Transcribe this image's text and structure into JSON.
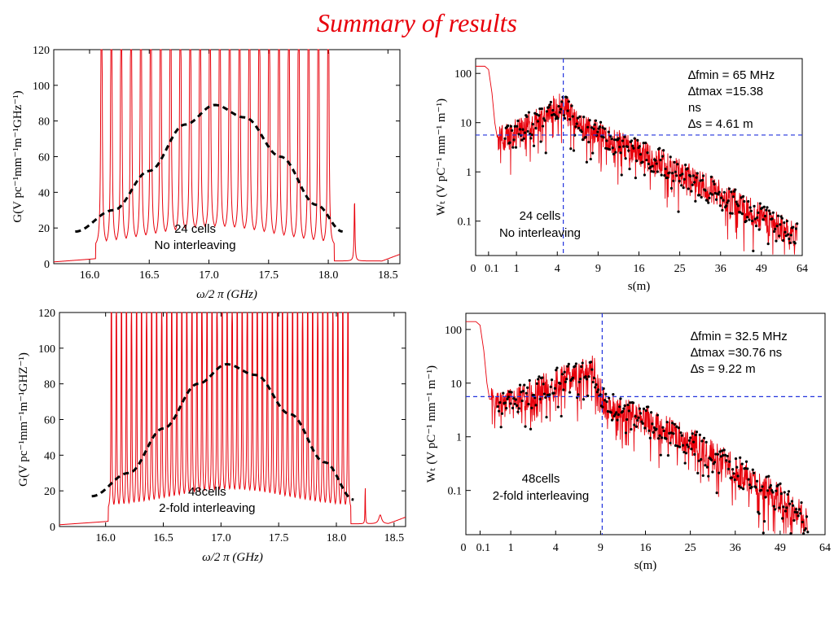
{
  "title": "Summary of results",
  "colors": {
    "curve": "#e8000b",
    "envelope": "#000000",
    "guide": "#2233dd",
    "points": "#000000"
  },
  "chart_data": [
    {
      "type": "line",
      "panel": "top-left",
      "xlabel": "ω/2 π (GHz)",
      "ylabel": "G(V pc⁻¹mm⁻¹m⁻¹GHz⁻¹)",
      "xlim": [
        15.7,
        18.6
      ],
      "ylim": [
        0,
        120
      ],
      "xticks": [
        16.0,
        16.5,
        17.0,
        17.5,
        18.0,
        18.5
      ],
      "xtick_labels": [
        "16.0",
        "16.5",
        "17.0",
        "17.5",
        "18.0",
        "18.5"
      ],
      "yticks": [
        0,
        20,
        40,
        60,
        80,
        100,
        120
      ],
      "annotation": [
        "24 cells",
        "No interleaving"
      ],
      "series": [
        {
          "kind": "peaks",
          "n_peaks": 24,
          "x_start": 16.1,
          "x_end": 18.0,
          "min_level": 8,
          "extra_peak": [
            18.22,
            34
          ],
          "tail": [
            [
              15.7,
              1
            ],
            [
              18.45,
              1
            ],
            [
              18.6,
              4
            ]
          ]
        },
        {
          "kind": "envelope",
          "x": [
            15.88,
            16.2,
            16.5,
            16.8,
            17.05,
            17.3,
            17.6,
            17.9,
            18.12
          ],
          "y": [
            18,
            30,
            52,
            78,
            89,
            82,
            60,
            33,
            18
          ]
        }
      ]
    },
    {
      "type": "scatter",
      "panel": "top-right",
      "xlabel": "s(m)",
      "ylabel": "Wₜ (V pC⁻¹ mm⁻¹ m⁻¹)",
      "x_scale": "sqrt",
      "y_scale": "log",
      "xlim": [
        0,
        64
      ],
      "ylim": [
        0.02,
        200
      ],
      "xticks": [
        0,
        0.1,
        1,
        4,
        9,
        16,
        25,
        36,
        49,
        64
      ],
      "xtick_labels": [
        "0",
        "0.1",
        "1",
        "4",
        "9",
        "16",
        "25",
        "36",
        "49",
        "64"
      ],
      "yticks": [
        0.1,
        1,
        10,
        100
      ],
      "ytick_labels": [
        "0.1",
        "1",
        "10",
        "100"
      ],
      "vline_x": 4.61,
      "hline_y": 5.6,
      "annotation": [
        "24 cells",
        "No interleaving"
      ],
      "params": [
        "∆fmin = 65 MHz",
        "∆tmax =15.38",
        "ns",
        "∆s = 4.61 m"
      ],
      "envelope": {
        "s": [
          0.15,
          0.3,
          0.6,
          1.5,
          3.0,
          4.5,
          6,
          10,
          16,
          25,
          36,
          49,
          62
        ],
        "w": [
          6,
          4.5,
          5,
          8,
          15,
          25,
          10,
          5,
          2.5,
          1,
          0.35,
          0.12,
          0.05
        ]
      }
    },
    {
      "type": "line",
      "panel": "bottom-left",
      "xlabel": "ω/2 π (GHz)",
      "ylabel": "G(V pc⁻¹mm⁻¹m⁻¹GHZ⁻¹)",
      "xlim": [
        15.6,
        18.6
      ],
      "ylim": [
        0,
        120
      ],
      "xticks": [
        16.0,
        16.5,
        17.0,
        17.5,
        18.0,
        18.5
      ],
      "xtick_labels": [
        "16.0",
        "16.5",
        "17.0",
        "17.5",
        "18.0",
        "18.5"
      ],
      "yticks": [
        0,
        20,
        40,
        60,
        80,
        100,
        120
      ],
      "annotation": [
        "48cells",
        "2-fold interleaving"
      ],
      "series": [
        {
          "kind": "peaks",
          "n_peaks": 48,
          "x_start": 16.05,
          "x_end": 18.1,
          "min_level": 8,
          "extra_peak": [
            18.25,
            22
          ],
          "tail": [
            [
              15.6,
              1
            ],
            [
              18.38,
              6
            ],
            [
              18.6,
              2
            ]
          ]
        },
        {
          "kind": "envelope",
          "x": [
            15.88,
            16.2,
            16.5,
            16.8,
            17.05,
            17.3,
            17.6,
            17.9,
            18.15
          ],
          "y": [
            17,
            30,
            55,
            80,
            91,
            85,
            63,
            36,
            15
          ]
        }
      ]
    },
    {
      "type": "scatter",
      "panel": "bottom-right",
      "xlabel": "s(m)",
      "ylabel": "Wₜ (V pC⁻¹ mm⁻¹ m⁻¹)",
      "x_scale": "sqrt",
      "y_scale": "log",
      "xlim": [
        0,
        64
      ],
      "ylim": [
        0.015,
        200
      ],
      "xticks": [
        0,
        0.1,
        1,
        4,
        9,
        16,
        25,
        36,
        49,
        64
      ],
      "xtick_labels": [
        "0",
        "0.1",
        "1",
        "4",
        "9",
        "16",
        "25",
        "36",
        "49",
        "64"
      ],
      "yticks": [
        0.1,
        1,
        10,
        100
      ],
      "ytick_labels": [
        "0.1",
        "1",
        "10",
        "100"
      ],
      "vline_x": 9.22,
      "hline_y": 5.6,
      "annotation": [
        "48cells",
        "2-fold interleaving"
      ],
      "params": [
        "∆fmin = 32.5 MHz",
        "∆tmax =30.76 ns",
        "∆s = 9.22 m"
      ],
      "envelope": {
        "s": [
          0.15,
          0.3,
          0.6,
          1.5,
          3.0,
          5,
          8,
          9.5,
          12,
          16,
          25,
          36,
          49,
          58
        ],
        "w": [
          5,
          4.5,
          4.5,
          5,
          8,
          12,
          20,
          4,
          3,
          2,
          0.8,
          0.25,
          0.07,
          0.03
        ]
      }
    }
  ]
}
